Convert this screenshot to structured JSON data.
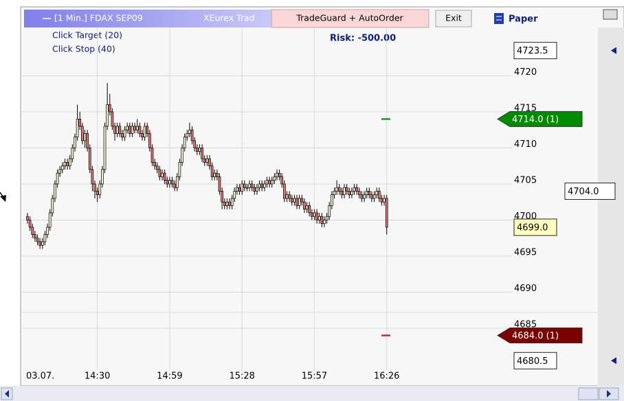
{
  "toolbar": {
    "chart_label": "[1 Min.] FDAX SEP09",
    "connection": "XEurex Trad",
    "tradeguard": "TradeGuard + AutoOrder",
    "exit": "Exit",
    "account": "Paper"
  },
  "orders": {
    "target": "Click Target (20)",
    "stop": "Click Stop (40)",
    "risk": "Risk: -500.00"
  },
  "chart_data": {
    "type": "candlestick",
    "up_color": "#f2eecb",
    "down_color": "#e07272",
    "grid": true,
    "ylim": [
      4679.1,
      4726.7
    ],
    "yticks": [
      4685,
      4690,
      4695,
      4700,
      4705,
      4710,
      4715,
      4720
    ],
    "xticks": [
      {
        "value": 0,
        "label": "03.07."
      },
      {
        "value": 28,
        "label": "14:30"
      },
      {
        "value": 57,
        "label": "14:59"
      },
      {
        "value": 86,
        "label": "15:28"
      },
      {
        "value": 115,
        "label": "15:57"
      },
      {
        "value": 144,
        "label": "16:26"
      }
    ],
    "price_markers": [
      {
        "value": 4723.5,
        "label": "4723.5",
        "color": "#ffffff"
      },
      {
        "value": 4714,
        "label": "4714.0 (1)",
        "color": "#008a00"
      },
      {
        "value": 4704,
        "label": "4704.0",
        "color": "#ffffff"
      },
      {
        "value": 4699,
        "label": "4699.0",
        "color": "#ffffc0"
      },
      {
        "value": 4684,
        "label": "4684.0 (1)",
        "color": "#7a0000"
      },
      {
        "value": 4680.5,
        "label": "4680.5",
        "color": "#ffffff"
      }
    ],
    "ohlc": [
      [
        4700.5,
        4701,
        4699.5,
        4700
      ],
      [
        4700,
        4700.5,
        4698.5,
        4699
      ],
      [
        4699,
        4699.5,
        4697.5,
        4698
      ],
      [
        4698,
        4698.5,
        4697,
        4697.5
      ],
      [
        4697.5,
        4698,
        4696.5,
        4697
      ],
      [
        4697,
        4697.5,
        4696,
        4696.5
      ],
      [
        4696.5,
        4697.5,
        4696,
        4697
      ],
      [
        4697,
        4698.5,
        4696.5,
        4698
      ],
      [
        4698,
        4699.5,
        4697.5,
        4699
      ],
      [
        4699,
        4701.5,
        4698.5,
        4701
      ],
      [
        4701,
        4703.5,
        4700.5,
        4703
      ],
      [
        4703,
        4705.5,
        4702.5,
        4705
      ],
      [
        4705,
        4707,
        4704.5,
        4706.5
      ],
      [
        4706.5,
        4707.5,
        4706,
        4707
      ],
      [
        4707,
        4708,
        4706.5,
        4707.5
      ],
      [
        4707.5,
        4708.5,
        4707,
        4708
      ],
      [
        4708,
        4708.5,
        4707,
        4707.5
      ],
      [
        4707.5,
        4709,
        4707,
        4708.5
      ],
      [
        4708.5,
        4710.5,
        4708,
        4710
      ],
      [
        4710,
        4712,
        4709.5,
        4711.5
      ],
      [
        4711.5,
        4716,
        4711,
        4714
      ],
      [
        4714,
        4715,
        4712.5,
        4713
      ],
      [
        4713,
        4713.5,
        4710.5,
        4711
      ],
      [
        4711,
        4712.5,
        4710,
        4712
      ],
      [
        4712,
        4712.5,
        4709.5,
        4710
      ],
      [
        4710,
        4710.5,
        4706.5,
        4707
      ],
      [
        4707,
        4707.5,
        4704,
        4705
      ],
      [
        4705,
        4705.5,
        4703,
        4704
      ],
      [
        4704,
        4704.5,
        4702.5,
        4703.5
      ],
      [
        4703.5,
        4705.5,
        4703,
        4705
      ],
      [
        4705,
        4707.5,
        4704.5,
        4707
      ],
      [
        4707,
        4713.5,
        4706.5,
        4713
      ],
      [
        4713,
        4719,
        4712.5,
        4716
      ],
      [
        4716,
        4717.5,
        4714.5,
        4715
      ],
      [
        4715,
        4715.5,
        4712.5,
        4713
      ],
      [
        4713,
        4713.5,
        4711,
        4712
      ],
      [
        4712,
        4713.5,
        4711.5,
        4713
      ],
      [
        4713,
        4713.5,
        4711.5,
        4712
      ],
      [
        4712,
        4712.5,
        4711,
        4711.5
      ],
      [
        4711.5,
        4713,
        4711,
        4712.5
      ],
      [
        4712.5,
        4713.5,
        4712,
        4713
      ],
      [
        4713,
        4713.5,
        4711.5,
        4712
      ],
      [
        4712,
        4713.5,
        4711.5,
        4713
      ],
      [
        4713,
        4713.5,
        4712,
        4712.5
      ],
      [
        4712.5,
        4714,
        4712,
        4713
      ],
      [
        4713,
        4713.5,
        4711.5,
        4712
      ],
      [
        4712,
        4712.5,
        4711,
        4711.5
      ],
      [
        4711.5,
        4713.5,
        4711,
        4713
      ],
      [
        4713,
        4713.5,
        4711.5,
        4712
      ],
      [
        4712,
        4712.5,
        4709.5,
        4710
      ],
      [
        4710,
        4710.5,
        4707.5,
        4708
      ],
      [
        4708,
        4708.5,
        4707,
        4707.5
      ],
      [
        4707.5,
        4708,
        4706.5,
        4707
      ],
      [
        4707,
        4707.5,
        4705.5,
        4706
      ],
      [
        4706,
        4707,
        4705.5,
        4706.5
      ],
      [
        4706.5,
        4707,
        4705,
        4705.5
      ],
      [
        4705.5,
        4706,
        4704.5,
        4705
      ],
      [
        4705,
        4706,
        4704.5,
        4705.5
      ],
      [
        4705.5,
        4706,
        4704.5,
        4705
      ],
      [
        4705,
        4705.5,
        4704,
        4704.5
      ],
      [
        4704.5,
        4706.5,
        4704,
        4706
      ],
      [
        4706,
        4708.5,
        4705.5,
        4708
      ],
      [
        4708,
        4710.5,
        4707.5,
        4710
      ],
      [
        4710,
        4712,
        4709.5,
        4711.5
      ],
      [
        4711.5,
        4712.5,
        4711,
        4712
      ],
      [
        4712,
        4713.5,
        4711.5,
        4712.5
      ],
      [
        4712.5,
        4713,
        4710.5,
        4711
      ],
      [
        4711,
        4711.5,
        4709.5,
        4710
      ],
      [
        4710,
        4710.5,
        4709,
        4709.5
      ],
      [
        4709.5,
        4710.5,
        4709,
        4710
      ],
      [
        4710,
        4710.5,
        4708,
        4708.5
      ],
      [
        4708.5,
        4709,
        4707.5,
        4708
      ],
      [
        4708,
        4709,
        4707.5,
        4708.5
      ],
      [
        4708.5,
        4709,
        4707,
        4707.5
      ],
      [
        4707.5,
        4708,
        4705.5,
        4706
      ],
      [
        4706,
        4707,
        4705.5,
        4706.5
      ],
      [
        4706.5,
        4707,
        4705.5,
        4706
      ],
      [
        4706,
        4706.5,
        4703.5,
        4704
      ],
      [
        4704,
        4704.5,
        4701.5,
        4702.5
      ],
      [
        4702.5,
        4703,
        4701.5,
        4702
      ],
      [
        4702,
        4703,
        4701.5,
        4702.5
      ],
      [
        4702.5,
        4703,
        4701.5,
        4702
      ],
      [
        4702,
        4703.5,
        4701.5,
        4703
      ],
      [
        4703,
        4704.5,
        4702.5,
        4704
      ],
      [
        4704,
        4705,
        4703.5,
        4704.5
      ],
      [
        4704.5,
        4705,
        4703.5,
        4704
      ],
      [
        4704,
        4705.5,
        4703.5,
        4705
      ],
      [
        4705,
        4705.5,
        4704,
        4704.5
      ],
      [
        4704.5,
        4705,
        4704,
        4704.5
      ],
      [
        4704.5,
        4705.5,
        4704,
        4705
      ],
      [
        4705,
        4705.5,
        4704,
        4704.5
      ],
      [
        4704.5,
        4705,
        4703.5,
        4704
      ],
      [
        4704,
        4705,
        4703.5,
        4704.5
      ],
      [
        4704.5,
        4705.5,
        4704,
        4705
      ],
      [
        4705,
        4705.5,
        4704,
        4704.5
      ],
      [
        4704.5,
        4705.5,
        4704,
        4705
      ],
      [
        4705,
        4706,
        4704.5,
        4705.5
      ],
      [
        4705.5,
        4706,
        4704.5,
        4705
      ],
      [
        4705,
        4706,
        4704.5,
        4705.5
      ],
      [
        4705.5,
        4706.5,
        4705,
        4706
      ],
      [
        4706,
        4707,
        4705.5,
        4706.5
      ],
      [
        4706.5,
        4707,
        4705.5,
        4706
      ],
      [
        4706,
        4706.5,
        4704.5,
        4705
      ],
      [
        4705,
        4705.5,
        4702.5,
        4703
      ],
      [
        4703,
        4704,
        4702.5,
        4703.5
      ],
      [
        4703.5,
        4704,
        4702.5,
        4703
      ],
      [
        4703,
        4703.5,
        4702,
        4702.5
      ],
      [
        4702.5,
        4703.5,
        4702,
        4703
      ],
      [
        4703,
        4703.5,
        4701.5,
        4702
      ],
      [
        4702,
        4703.5,
        4701.5,
        4703
      ],
      [
        4703,
        4703.5,
        4702,
        4702.5
      ],
      [
        4702.5,
        4703,
        4701,
        4701.5
      ],
      [
        4701.5,
        4702.5,
        4701,
        4702
      ],
      [
        4702,
        4702.5,
        4700.5,
        4701
      ],
      [
        4701,
        4701.5,
        4700,
        4700.5
      ],
      [
        4700.5,
        4701.5,
        4700,
        4701
      ],
      [
        4701,
        4701.5,
        4699.5,
        4700
      ],
      [
        4700,
        4701,
        4699.5,
        4700.5
      ],
      [
        4700.5,
        4701,
        4699,
        4699.5
      ],
      [
        4699.5,
        4700.5,
        4699,
        4700
      ],
      [
        4700,
        4701,
        4699.5,
        4700.5
      ],
      [
        4700.5,
        4702.5,
        4700,
        4702
      ],
      [
        4702,
        4704,
        4701.5,
        4703.5
      ],
      [
        4703.5,
        4704.5,
        4703,
        4704
      ],
      [
        4704,
        4705.5,
        4703.5,
        4704.5
      ],
      [
        4704.5,
        4705,
        4703.5,
        4704
      ],
      [
        4704,
        4704.5,
        4703,
        4703.5
      ],
      [
        4703.5,
        4705,
        4703,
        4704.5
      ],
      [
        4704.5,
        4705,
        4703.5,
        4704
      ],
      [
        4704,
        4704.5,
        4703,
        4703.5
      ],
      [
        4703.5,
        4704.5,
        4703,
        4704
      ],
      [
        4704,
        4705,
        4703.5,
        4704.5
      ],
      [
        4704.5,
        4705,
        4703.5,
        4704
      ],
      [
        4704,
        4704.5,
        4703,
        4703.5
      ],
      [
        4703.5,
        4704,
        4702.5,
        4703
      ],
      [
        4703,
        4704,
        4702.5,
        4703.5
      ],
      [
        4703.5,
        4704.5,
        4703,
        4704
      ],
      [
        4704,
        4704.5,
        4703,
        4703.5
      ],
      [
        4703.5,
        4704,
        4702.5,
        4703
      ],
      [
        4703,
        4704,
        4702.5,
        4703.5
      ],
      [
        4703.5,
        4704.5,
        4703,
        4704
      ],
      [
        4704,
        4704.5,
        4702.5,
        4703
      ],
      [
        4703,
        4703.5,
        4702,
        4702.5
      ],
      [
        4702.5,
        4703.5,
        4702,
        4703
      ],
      [
        4703,
        4703.5,
        4698,
        4699
      ]
    ]
  }
}
